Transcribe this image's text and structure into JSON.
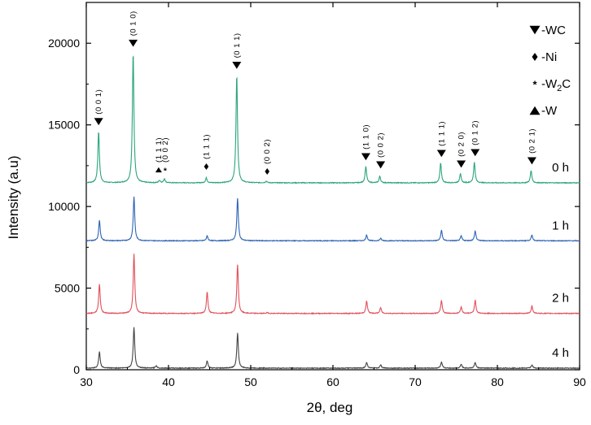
{
  "chart_data": {
    "type": "line",
    "xlabel": "2θ, deg",
    "ylabel": "Intensity (a.u)",
    "xlim": [
      30,
      90
    ],
    "ylim": [
      0,
      22500
    ],
    "x_ticks": [
      30,
      40,
      50,
      60,
      70,
      80,
      90
    ],
    "y_ticks": [
      0,
      5000,
      10000,
      15000,
      20000
    ],
    "grid": false,
    "series": [
      {
        "name": "0 h",
        "color": "#2aa57a",
        "baseline": 11450,
        "peaks": [
          [
            31.5,
            14600
          ],
          [
            35.7,
            19400
          ],
          [
            38.9,
            11600
          ],
          [
            39.5,
            11700
          ],
          [
            44.6,
            11750
          ],
          [
            48.3,
            18050
          ],
          [
            51.9,
            11550
          ],
          [
            64.0,
            12450
          ],
          [
            65.7,
            11850
          ],
          [
            73.1,
            12650
          ],
          [
            75.5,
            12000
          ],
          [
            77.2,
            12700
          ],
          [
            84.1,
            12200
          ]
        ]
      },
      {
        "name": "1 h",
        "color": "#2e63b4",
        "baseline": 7900,
        "peaks": [
          [
            31.6,
            9150
          ],
          [
            35.8,
            10600
          ],
          [
            44.7,
            8200
          ],
          [
            48.4,
            10500
          ],
          [
            64.1,
            8250
          ],
          [
            65.8,
            8050
          ],
          [
            73.2,
            8550
          ],
          [
            75.6,
            8200
          ],
          [
            77.3,
            8500
          ],
          [
            84.2,
            8250
          ]
        ]
      },
      {
        "name": "2 h",
        "color": "#e0505a",
        "baseline": 3450,
        "peaks": [
          [
            31.6,
            5250
          ],
          [
            35.8,
            7100
          ],
          [
            44.7,
            4750
          ],
          [
            48.4,
            6450
          ],
          [
            52.0,
            3500
          ],
          [
            64.1,
            4200
          ],
          [
            65.8,
            3800
          ],
          [
            73.2,
            4250
          ],
          [
            75.6,
            3850
          ],
          [
            77.3,
            4250
          ],
          [
            84.2,
            3900
          ]
        ]
      },
      {
        "name": "4 h",
        "color": "#444444",
        "baseline": 100,
        "peaks": [
          [
            31.6,
            1100
          ],
          [
            35.8,
            2600
          ],
          [
            38.5,
            250
          ],
          [
            44.7,
            550
          ],
          [
            48.4,
            2250
          ],
          [
            64.1,
            450
          ],
          [
            65.8,
            300
          ],
          [
            73.2,
            450
          ],
          [
            75.6,
            350
          ],
          [
            77.3,
            450
          ],
          [
            84.2,
            300
          ]
        ]
      }
    ],
    "peak_labels": [
      {
        "x": 31.5,
        "y": 14600,
        "marker": "down",
        "label": "(0 0 1)"
      },
      {
        "x": 35.7,
        "y": 19400,
        "marker": "down",
        "label": "(0 1 0)"
      },
      {
        "x": 38.8,
        "y": 11650,
        "marker": "up",
        "label": "(1 1 1)"
      },
      {
        "x": 39.6,
        "y": 11650,
        "marker": "star",
        "label": "(0 0 2)"
      },
      {
        "x": 44.6,
        "y": 11850,
        "marker": "diamond",
        "label": "(1 1 1)"
      },
      {
        "x": 48.3,
        "y": 18050,
        "marker": "down",
        "label": "(0 1 1)"
      },
      {
        "x": 52.0,
        "y": 11550,
        "marker": "diamond",
        "label": "(0 0 2)"
      },
      {
        "x": 64.0,
        "y": 12450,
        "marker": "down",
        "label": "(1 1 0)"
      },
      {
        "x": 65.8,
        "y": 11950,
        "marker": "down",
        "label": "(0 0 2)"
      },
      {
        "x": 73.2,
        "y": 12650,
        "marker": "down",
        "label": "(1 1 1)"
      },
      {
        "x": 75.6,
        "y": 12000,
        "marker": "down",
        "label": "(0 2 0)"
      },
      {
        "x": 77.3,
        "y": 12700,
        "marker": "down",
        "label": "(0 1 2)"
      },
      {
        "x": 84.2,
        "y": 12200,
        "marker": "down",
        "label": "(0 2 1)"
      }
    ],
    "legend": {
      "placement": "top-right",
      "entries": [
        {
          "marker": "down",
          "label": "-WC"
        },
        {
          "marker": "diamond",
          "label": "-Ni"
        },
        {
          "marker": "star",
          "label_main": "-W",
          "label_sub": "2",
          "label_tail": "C"
        },
        {
          "marker": "up",
          "label": "-W"
        }
      ]
    }
  }
}
